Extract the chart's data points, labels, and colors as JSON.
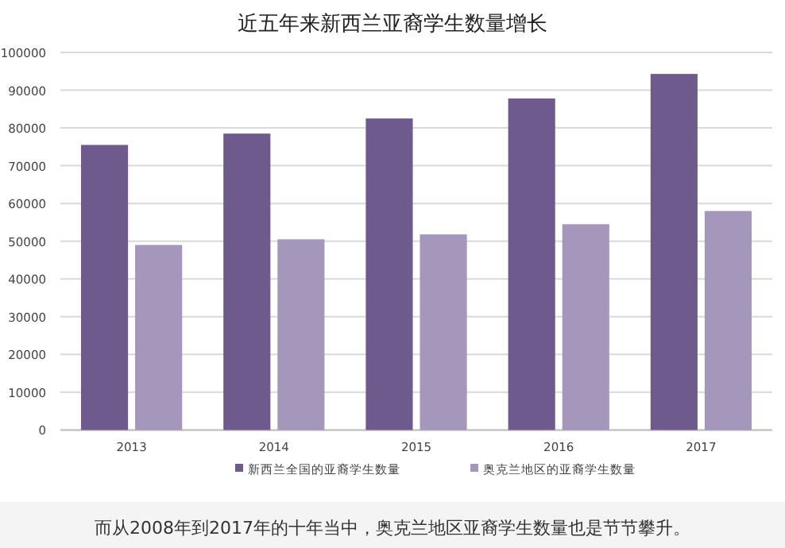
{
  "chart_data": {
    "type": "bar",
    "title": "近五年来新西兰亚裔学生数量增长",
    "categories": [
      "2013",
      "2014",
      "2015",
      "2016",
      "2017"
    ],
    "series": [
      {
        "name": "新西兰全国的亚裔学生数量",
        "color": "#6f5a8d",
        "values": [
          75500,
          78500,
          82500,
          87800,
          94300
        ]
      },
      {
        "name": "奥克兰地区的亚裔学生数量",
        "color": "#a597bc",
        "values": [
          49000,
          50500,
          51800,
          54500,
          58000
        ]
      }
    ],
    "ylim": [
      0,
      100000
    ],
    "yticks": [
      0,
      10000,
      20000,
      30000,
      40000,
      50000,
      60000,
      70000,
      80000,
      90000,
      100000
    ],
    "grid": "y",
    "legend": "bottom",
    "annotations": [
      "而从2008年到2017年的十年当中，奥克兰地区亚裔学生数量也是节节攀升。"
    ]
  }
}
